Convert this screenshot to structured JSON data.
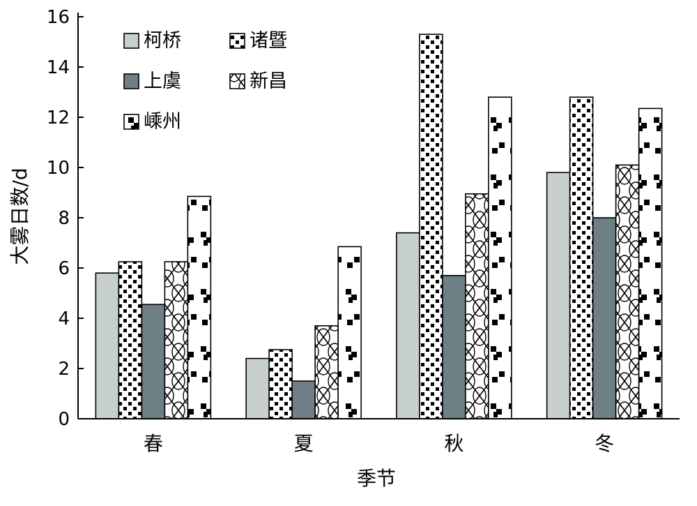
{
  "chart_data": {
    "type": "bar",
    "title": "",
    "xlabel": "季节",
    "ylabel": "大雾日数/d",
    "categories": [
      "春",
      "夏",
      "秋",
      "冬"
    ],
    "ylim": [
      0,
      16
    ],
    "yticks": [
      0,
      2,
      4,
      6,
      8,
      10,
      12,
      14,
      16
    ],
    "legend_position": "top-left",
    "grid": false,
    "series": [
      {
        "name": "柯桥",
        "values": [
          5.8,
          2.4,
          7.4,
          9.8
        ],
        "fill": "#c7d0cf",
        "pattern": "solid"
      },
      {
        "name": "诸暨",
        "values": [
          6.25,
          2.75,
          15.3,
          12.8
        ],
        "fill": "#ffffff",
        "pattern": "dots"
      },
      {
        "name": "上虞",
        "values": [
          4.55,
          1.5,
          5.7,
          8.0
        ],
        "fill": "#6e7f86",
        "pattern": "solid"
      },
      {
        "name": "新昌",
        "values": [
          6.25,
          3.7,
          8.95,
          10.1
        ],
        "fill": "#ffffff",
        "pattern": "lattice"
      },
      {
        "name": "嵊州",
        "values": [
          8.85,
          6.85,
          12.8,
          12.35
        ],
        "fill": "#ffffff",
        "pattern": "checker"
      }
    ]
  }
}
